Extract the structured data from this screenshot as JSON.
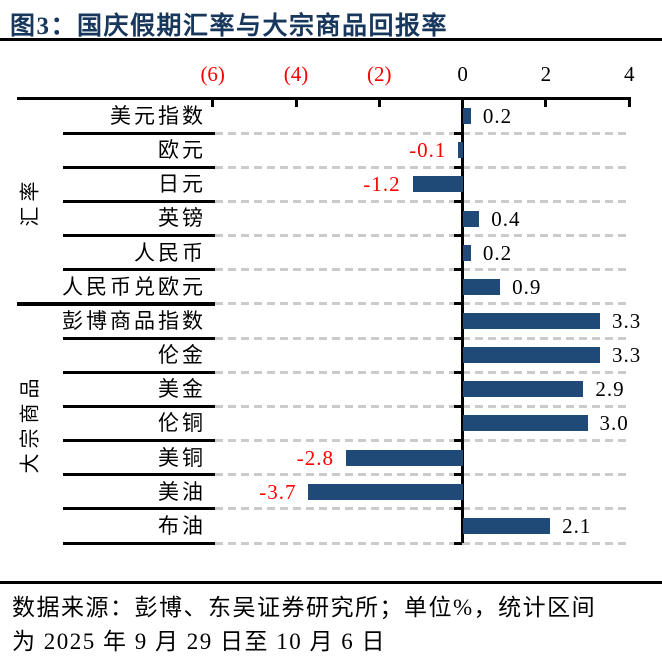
{
  "title": "图3：国庆假期汇率与大宗商品回报率",
  "footer": {
    "line1": "数据来源：彭博、东吴证券研究所；单位%，统计区间",
    "line2": "为 2025 年 9 月 29 日至 10 月 6 日"
  },
  "colors": {
    "bar": "#1F4A78",
    "negative_label": "#FF0000",
    "title": "#17375C",
    "gridline": "#CBCBCB",
    "axis": "#000000"
  },
  "chart_data": {
    "type": "bar",
    "orientation": "horizontal",
    "title": "国庆假期汇率与大宗商品回报率",
    "unit": "%",
    "xlim": [
      -6,
      4
    ],
    "grid": "dashed-horizontal-rows",
    "legend": "none",
    "axis_ticks": [
      {
        "value": -6,
        "label": "(6)",
        "negative": true
      },
      {
        "value": -4,
        "label": "(4)",
        "negative": true
      },
      {
        "value": -2,
        "label": "(2)",
        "negative": true
      },
      {
        "value": 0,
        "label": "0",
        "negative": false
      },
      {
        "value": 2,
        "label": "2",
        "negative": false
      },
      {
        "value": 4,
        "label": "4",
        "negative": false
      }
    ],
    "groups": [
      {
        "name": "汇率",
        "items": [
          {
            "label": "美元指数",
            "value": 0.2
          },
          {
            "label": "欧元",
            "value": -0.1
          },
          {
            "label": "日元",
            "value": -1.2
          },
          {
            "label": "英镑",
            "value": 0.4
          },
          {
            "label": "人民币",
            "value": 0.2
          },
          {
            "label": "人民币兑欧元",
            "value": 0.9
          }
        ]
      },
      {
        "name": "大宗商品",
        "items": [
          {
            "label": "彭博商品指数",
            "value": 3.3
          },
          {
            "label": "伦金",
            "value": 3.3
          },
          {
            "label": "美金",
            "value": 2.9
          },
          {
            "label": "伦铜",
            "value": 3.0
          },
          {
            "label": "美铜",
            "value": -2.8
          },
          {
            "label": "美油",
            "value": -3.7
          },
          {
            "label": "布油",
            "value": 2.1
          }
        ]
      }
    ]
  }
}
